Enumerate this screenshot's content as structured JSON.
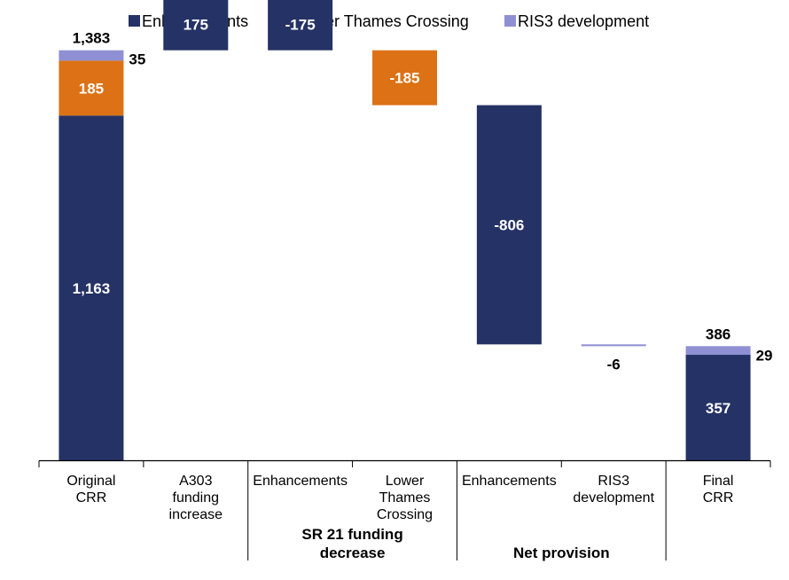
{
  "colors": {
    "Enhancements": "#253265",
    "Lower Thames Crossing": "#dc7215",
    "RIS3 development": "#8f8fd4",
    "axis": "#000000"
  },
  "chart_data": {
    "type": "bar",
    "subtype": "waterfall",
    "legend": {
      "position": "top",
      "entries": [
        "Enhancements",
        "Lower Thames Crossing",
        "RIS3 development"
      ]
    },
    "ylim": [
      0,
      1400
    ],
    "grid": false,
    "bars": [
      {
        "category": [
          "Original",
          "CRR"
        ],
        "stack": [
          {
            "series": "Enhancements",
            "from": 0,
            "to": 1163,
            "label": "1,163",
            "label_pos": "inside"
          },
          {
            "series": "Lower Thames Crossing",
            "from": 1163,
            "to": 1348,
            "label": "185",
            "label_pos": "inside"
          },
          {
            "series": "RIS3 development",
            "from": 1348,
            "to": 1383,
            "label": "35",
            "label_pos": "right"
          }
        ],
        "total_label": "1,383"
      },
      {
        "category": [
          "A303",
          "funding",
          "increase"
        ],
        "stack": [
          {
            "series": "Enhancements",
            "from": 1383,
            "to": 1558,
            "label": "175",
            "label_pos": "inside"
          }
        ]
      },
      {
        "category": [
          "Enhancements"
        ],
        "group": 0,
        "stack": [
          {
            "series": "Enhancements",
            "from": 1383,
            "to": 1558,
            "label": "-175",
            "label_pos": "inside"
          }
        ]
      },
      {
        "category": [
          "Lower",
          "Thames",
          "Crossing"
        ],
        "group": 0,
        "stack": [
          {
            "series": "Lower Thames Crossing",
            "from": 1198,
            "to": 1383,
            "label": "-185",
            "label_pos": "inside"
          }
        ]
      },
      {
        "category": [
          "Enhancements"
        ],
        "group": 1,
        "stack": [
          {
            "series": "Enhancements",
            "from": 392,
            "to": 1198,
            "label": "-806",
            "label_pos": "inside"
          }
        ]
      },
      {
        "category": [
          "RIS3",
          "development"
        ],
        "group": 1,
        "stack": [
          {
            "series": "RIS3 development",
            "from": 386,
            "to": 392,
            "label": "-6",
            "label_pos": "below"
          }
        ]
      },
      {
        "category": [
          "Final",
          "CRR"
        ],
        "stack": [
          {
            "series": "Enhancements",
            "from": 0,
            "to": 357,
            "label": "357",
            "label_pos": "inside"
          },
          {
            "series": "RIS3 development",
            "from": 357,
            "to": 386,
            "label": "29",
            "label_pos": "right"
          }
        ],
        "total_label": "386"
      }
    ],
    "groups": [
      {
        "label": [
          "SR 21 funding",
          "decrease"
        ]
      },
      {
        "label": [
          "Net provision"
        ]
      }
    ]
  }
}
